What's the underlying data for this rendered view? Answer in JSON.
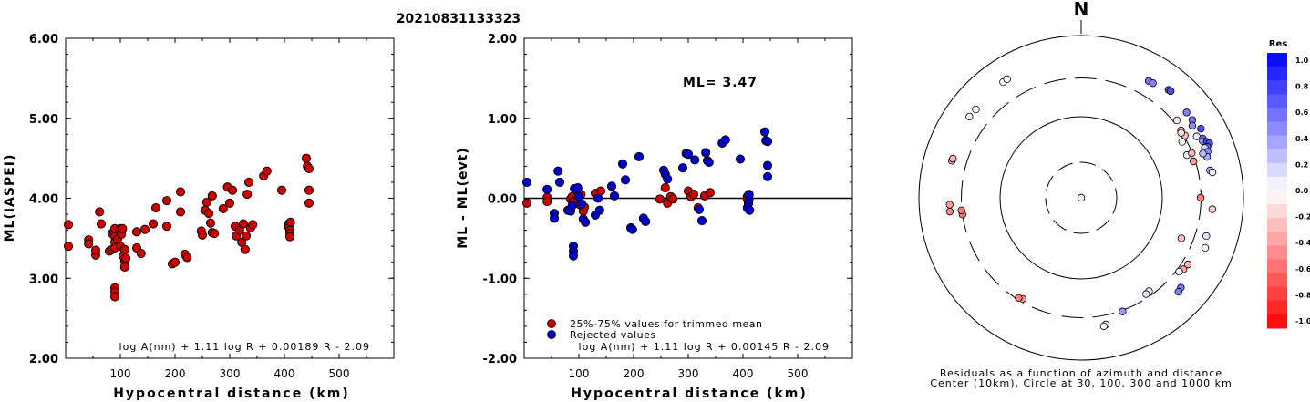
{
  "title": "20210831133323",
  "chart_data": [
    {
      "type": "scatter",
      "xlabel": "Hypocentral distance (km)",
      "ylabel": "ML(IASPEI)",
      "xlim": [
        0,
        600
      ],
      "ylim": [
        2.0,
        6.0
      ],
      "xticks": [
        "100",
        "200",
        "300",
        "400",
        "500"
      ],
      "yticks": [
        "2.00",
        "3.00",
        "4.00",
        "5.00",
        "6.00"
      ],
      "formula": "log A(nm) + 1.11 log R + 0.00189 R - 2.09",
      "marker_color": "#cc0000",
      "points": [
        [
          5,
          3.67
        ],
        [
          5,
          3.4
        ],
        [
          42,
          3.48
        ],
        [
          42,
          3.43
        ],
        [
          55,
          3.29
        ],
        [
          55,
          3.35
        ],
        [
          62,
          3.83
        ],
        [
          65,
          3.68
        ],
        [
          80,
          3.34
        ],
        [
          85,
          3.56
        ],
        [
          85,
          3.36
        ],
        [
          88,
          3.58
        ],
        [
          90,
          3.62
        ],
        [
          90,
          3.52
        ],
        [
          90,
          3.45
        ],
        [
          90,
          3.38
        ],
        [
          90,
          2.88
        ],
        [
          90,
          2.83
        ],
        [
          90,
          2.77
        ],
        [
          95,
          3.49
        ],
        [
          100,
          3.62
        ],
        [
          100,
          3.4
        ],
        [
          102,
          3.55
        ],
        [
          104,
          3.62
        ],
        [
          105,
          3.28
        ],
        [
          108,
          3.36
        ],
        [
          108,
          3.21
        ],
        [
          108,
          3.14
        ],
        [
          110,
          3.25
        ],
        [
          130,
          3.38
        ],
        [
          130,
          3.58
        ],
        [
          138,
          3.31
        ],
        [
          145,
          3.61
        ],
        [
          160,
          3.68
        ],
        [
          165,
          3.88
        ],
        [
          185,
          3.97
        ],
        [
          185,
          3.65
        ],
        [
          195,
          3.18
        ],
        [
          200,
          3.2
        ],
        [
          210,
          3.83
        ],
        [
          210,
          4.08
        ],
        [
          218,
          3.3
        ],
        [
          222,
          3.26
        ],
        [
          248,
          3.59
        ],
        [
          250,
          3.54
        ],
        [
          255,
          3.85
        ],
        [
          258,
          3.95
        ],
        [
          262,
          3.81
        ],
        [
          265,
          3.69
        ],
        [
          268,
          3.57
        ],
        [
          268,
          4.03
        ],
        [
          272,
          3.56
        ],
        [
          288,
          3.87
        ],
        [
          296,
          4.14
        ],
        [
          300,
          3.94
        ],
        [
          305,
          4.1
        ],
        [
          310,
          3.65
        ],
        [
          312,
          3.53
        ],
        [
          318,
          3.6
        ],
        [
          322,
          3.45
        ],
        [
          325,
          3.68
        ],
        [
          328,
          3.36
        ],
        [
          330,
          3.53
        ],
        [
          332,
          4.05
        ],
        [
          335,
          4.2
        ],
        [
          338,
          3.63
        ],
        [
          342,
          3.67
        ],
        [
          362,
          4.28
        ],
        [
          368,
          4.34
        ],
        [
          395,
          4.1
        ],
        [
          408,
          3.68
        ],
        [
          408,
          3.64
        ],
        [
          410,
          3.6
        ],
        [
          410,
          3.56
        ],
        [
          410,
          3.52
        ],
        [
          411,
          3.7
        ],
        [
          440,
          4.5
        ],
        [
          442,
          4.4
        ],
        [
          445,
          4.37
        ],
        [
          445,
          4.1
        ],
        [
          445,
          3.94
        ]
      ]
    },
    {
      "type": "scatter",
      "xlabel": "Hypocentral distance (km)",
      "ylabel": "ML - ML(evt)",
      "xlim": [
        0,
        600
      ],
      "ylim": [
        -2.0,
        2.0
      ],
      "xticks": [
        "100",
        "200",
        "300",
        "400",
        "500"
      ],
      "yticks": [
        "-2.00",
        "-1.00",
        "0.00",
        "1.00",
        "2.00"
      ],
      "annotation": "ML= 3.47",
      "reference_line": 0.0,
      "formula": "log A(nm) + 1.11 log R + 0.00145 R - 2.09",
      "series": [
        {
          "name": "25%-75% values for trimmed mean",
          "color": "#cc0000",
          "points": [
            [
              5,
              -0.06
            ],
            [
              42,
              0.01
            ],
            [
              42,
              -0.04
            ],
            [
              85,
              -0.01
            ],
            [
              88,
              0.02
            ],
            [
              90,
              -0.04
            ],
            [
              95,
              0.04
            ],
            [
              100,
              0.03
            ],
            [
              102,
              -0.08
            ],
            [
              104,
              0.05
            ],
            [
              108,
              -0.16
            ],
            [
              110,
              -0.11
            ],
            [
              130,
              0.06
            ],
            [
              140,
              0.09
            ],
            [
              248,
              -0.01
            ],
            [
              258,
              0.13
            ],
            [
              262,
              -0.06
            ],
            [
              268,
              0.02
            ],
            [
              272,
              -0.01
            ],
            [
              300,
              0.09
            ],
            [
              305,
              0.02
            ],
            [
              310,
              0.05
            ],
            [
              318,
              -0.12
            ],
            [
              330,
              0.03
            ],
            [
              340,
              0.07
            ],
            [
              408,
              0.02
            ],
            [
              408,
              -0.01
            ],
            [
              410,
              -0.05
            ],
            [
              411,
              0.05
            ]
          ]
        },
        {
          "name": "Rejected values",
          "color": "#0000cc",
          "points": [
            [
              5,
              0.2
            ],
            [
              42,
              0.11
            ],
            [
              55,
              -0.19
            ],
            [
              55,
              -0.25
            ],
            [
              62,
              0.34
            ],
            [
              65,
              0.2
            ],
            [
              80,
              -0.15
            ],
            [
              85,
              -0.16
            ],
            [
              88,
              -0.09
            ],
            [
              90,
              -0.6
            ],
            [
              90,
              -0.66
            ],
            [
              90,
              -0.72
            ],
            [
              92,
              0.12
            ],
            [
              98,
              0.13
            ],
            [
              100,
              0.02
            ],
            [
              105,
              -0.07
            ],
            [
              108,
              -0.26
            ],
            [
              112,
              -0.3
            ],
            [
              130,
              -0.21
            ],
            [
              135,
              0.0
            ],
            [
              138,
              -0.15
            ],
            [
              160,
              0.15
            ],
            [
              165,
              0.03
            ],
            [
              180,
              0.43
            ],
            [
              185,
              0.23
            ],
            [
              195,
              -0.37
            ],
            [
              198,
              -0.39
            ],
            [
              210,
              0.52
            ],
            [
              218,
              -0.25
            ],
            [
              222,
              -0.29
            ],
            [
              255,
              0.35
            ],
            [
              258,
              0.3
            ],
            [
              262,
              0.24
            ],
            [
              290,
              0.38
            ],
            [
              296,
              0.56
            ],
            [
              300,
              0.55
            ],
            [
              312,
              0.48
            ],
            [
              320,
              -0.14
            ],
            [
              325,
              -0.28
            ],
            [
              332,
              0.57
            ],
            [
              335,
              0.47
            ],
            [
              338,
              0.45
            ],
            [
              362,
              0.69
            ],
            [
              368,
              0.73
            ],
            [
              395,
              0.49
            ],
            [
              408,
              -0.12
            ],
            [
              410,
              -0.07
            ],
            [
              411,
              -0.02
            ],
            [
              411,
              0.04
            ],
            [
              412,
              -0.15
            ],
            [
              440,
              0.83
            ],
            [
              442,
              0.72
            ],
            [
              445,
              0.71
            ],
            [
              445,
              0.41
            ],
            [
              445,
              0.27
            ]
          ]
        }
      ]
    },
    {
      "type": "scatter",
      "subtype": "azimuthal residual map",
      "north_label": "N",
      "caption_line1": "Residuals as a function of azimuth and distance",
      "caption_line2": "Center (10km), Circle at 30, 100, 300 and 1000 km",
      "circles_km": [
        {
          "km": 30,
          "style": "dashed"
        },
        {
          "km": 100,
          "style": "solid"
        },
        {
          "km": 300,
          "style": "dashed"
        },
        {
          "km": 1000,
          "style": "solid"
        }
      ],
      "colorbar": {
        "title": "Res",
        "range": [
          -1.0,
          1.0
        ],
        "tick_labels": [
          "1.0",
          "0.8",
          "0.6",
          "0.4",
          "0.2",
          "0.0",
          "-0.2",
          "-0.4",
          "-0.6",
          "-0.8",
          "-1.0"
        ],
        "positive_color": "#0000ff",
        "zero_color": "#ffffff",
        "negative_color": "#ff0000"
      },
      "stations": [
        {
          "azimuth_deg": 0,
          "distance_km": 11,
          "residual": 0.05
        },
        {
          "azimuth_deg": -34,
          "distance_km": 525,
          "residual": 0.0
        },
        {
          "azimuth_deg": -32,
          "distance_km": 530,
          "residual": 0.0
        },
        {
          "azimuth_deg": -54,
          "distance_km": 505,
          "residual": 0.05
        },
        {
          "azimuth_deg": -50,
          "distance_km": 495,
          "residual": 0.02
        },
        {
          "azimuth_deg": 30,
          "distance_km": 460,
          "residual": 0.55
        },
        {
          "azimuth_deg": 32,
          "distance_km": 465,
          "residual": 0.5
        },
        {
          "azimuth_deg": 39,
          "distance_km": 515,
          "residual": 0.7
        },
        {
          "azimuth_deg": 40,
          "distance_km": 520,
          "residual": 0.7
        },
        {
          "azimuth_deg": 51,
          "distance_km": 470,
          "residual": 0.5
        },
        {
          "azimuth_deg": 55,
          "distance_km": 470,
          "residual": 0.55
        },
        {
          "azimuth_deg": 60,
          "distance_km": 505,
          "residual": 0.7
        },
        {
          "azimuth_deg": 57,
          "distance_km": 430,
          "residual": 0.45
        },
        {
          "azimuth_deg": 62,
          "distance_km": 410,
          "residual": 0.1
        },
        {
          "azimuth_deg": 64,
          "distance_km": 465,
          "residual": 0.55
        },
        {
          "azimuth_deg": 65,
          "distance_km": 450,
          "residual": 0.4
        },
        {
          "azimuth_deg": 66,
          "distance_km": 495,
          "residual": 0.75
        },
        {
          "azimuth_deg": 67,
          "distance_km": 520,
          "residual": 0.7
        },
        {
          "azimuth_deg": 68,
          "distance_km": 475,
          "residual": 0.6
        },
        {
          "azimuth_deg": 68,
          "distance_km": 440,
          "residual": 0.2
        },
        {
          "azimuth_deg": 70,
          "distance_km": 455,
          "residual": 0.45
        },
        {
          "azimuth_deg": 72,
          "distance_km": 428,
          "residual": 0.35
        },
        {
          "azimuth_deg": 70,
          "distance_km": 395,
          "residual": 0.25
        },
        {
          "azimuth_deg": 78,
          "distance_km": 420,
          "residual": 0.3
        },
        {
          "azimuth_deg": 79,
          "distance_km": 445,
          "residual": 0.05
        },
        {
          "azimuth_deg": 51,
          "distance_km": 330,
          "residual": -0.1
        },
        {
          "azimuth_deg": 56,
          "distance_km": 305,
          "residual": -0.2
        },
        {
          "azimuth_deg": 59,
          "distance_km": 310,
          "residual": -0.25
        },
        {
          "azimuth_deg": 61,
          "distance_km": 265,
          "residual": 0.0
        },
        {
          "azimuth_deg": 57,
          "distance_km": 295,
          "residual": -0.1
        },
        {
          "azimuth_deg": 68,
          "distance_km": 255,
          "residual": 0.0
        },
        {
          "azimuth_deg": 68,
          "distance_km": 295,
          "residual": -0.3
        },
        {
          "azimuth_deg": 72,
          "distance_km": 285,
          "residual": -0.4
        },
        {
          "azimuth_deg": 90,
          "distance_km": 297,
          "residual": -0.5
        },
        {
          "azimuth_deg": 95,
          "distance_km": 420,
          "residual": -0.2
        },
        {
          "azimuth_deg": 107,
          "distance_km": 410,
          "residual": 0.1
        },
        {
          "azimuth_deg": 112,
          "distance_km": 445,
          "residual": 0.05
        },
        {
          "azimuth_deg": 122,
          "distance_km": 355,
          "residual": -0.3
        },
        {
          "azimuth_deg": 125,
          "distance_km": 345,
          "residual": -0.35
        },
        {
          "azimuth_deg": 127,
          "distance_km": 325,
          "residual": 0.0
        },
        {
          "azimuth_deg": 132,
          "distance_km": 450,
          "residual": 0.55
        },
        {
          "azimuth_deg": 134,
          "distance_km": 465,
          "residual": 0.5
        },
        {
          "azimuth_deg": 112,
          "distance_km": 215,
          "residual": -0.25
        },
        {
          "azimuth_deg": 144,
          "distance_km": 265,
          "residual": 0.0
        },
        {
          "azimuth_deg": 146,
          "distance_km": 270,
          "residual": 0.1
        },
        {
          "azimuth_deg": 160,
          "distance_km": 310,
          "residual": 0.4
        },
        {
          "azimuth_deg": 169,
          "distance_km": 390,
          "residual": 0.0
        },
        {
          "azimuth_deg": 170,
          "distance_km": 405,
          "residual": 0.0
        },
        {
          "azimuth_deg": 210,
          "distance_km": 275,
          "residual": -0.45
        },
        {
          "azimuth_deg": 212,
          "distance_km": 285,
          "residual": -0.5
        },
        {
          "azimuth_deg": 262,
          "distance_km": 300,
          "residual": -0.55
        },
        {
          "azimuth_deg": 264,
          "distance_km": 305,
          "residual": -0.55
        },
        {
          "azimuth_deg": 264,
          "distance_km": 425,
          "residual": -0.45
        },
        {
          "azimuth_deg": 267,
          "distance_km": 420,
          "residual": -0.4
        },
        {
          "azimuth_deg": 286,
          "distance_km": 455,
          "residual": -0.4
        },
        {
          "azimuth_deg": 287,
          "distance_km": 450,
          "residual": -0.3
        }
      ]
    }
  ]
}
